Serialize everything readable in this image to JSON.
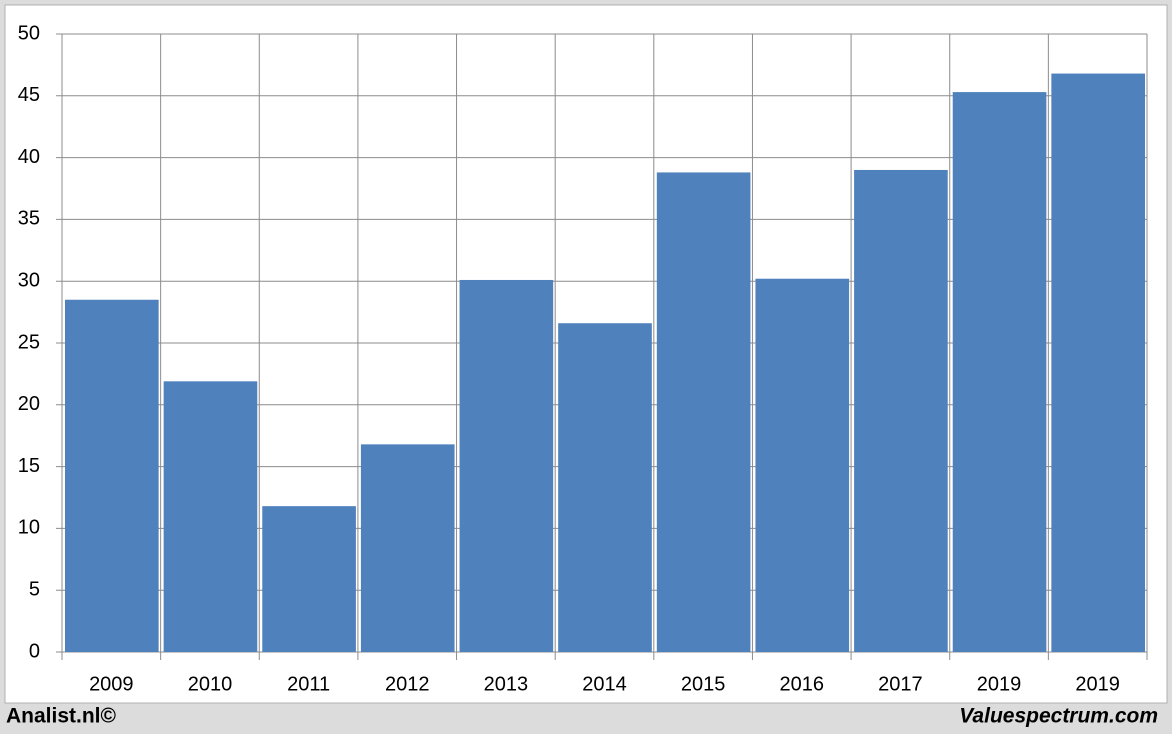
{
  "chart_data": {
    "type": "bar",
    "categories": [
      "2009",
      "2010",
      "2011",
      "2012",
      "2013",
      "2014",
      "2015",
      "2016",
      "2017",
      "2019",
      "2019"
    ],
    "values": [
      28.5,
      21.9,
      11.8,
      16.8,
      30.1,
      26.6,
      38.8,
      30.2,
      39.0,
      45.3,
      46.8
    ],
    "color": "#4f81bd",
    "ylim": [
      0,
      50
    ],
    "yticks": [
      0,
      5,
      10,
      15,
      20,
      25,
      30,
      35,
      40,
      45,
      50
    ],
    "grid": true,
    "footer_left": "Analist.nl©",
    "footer_right": "Valuespectrum.com"
  }
}
